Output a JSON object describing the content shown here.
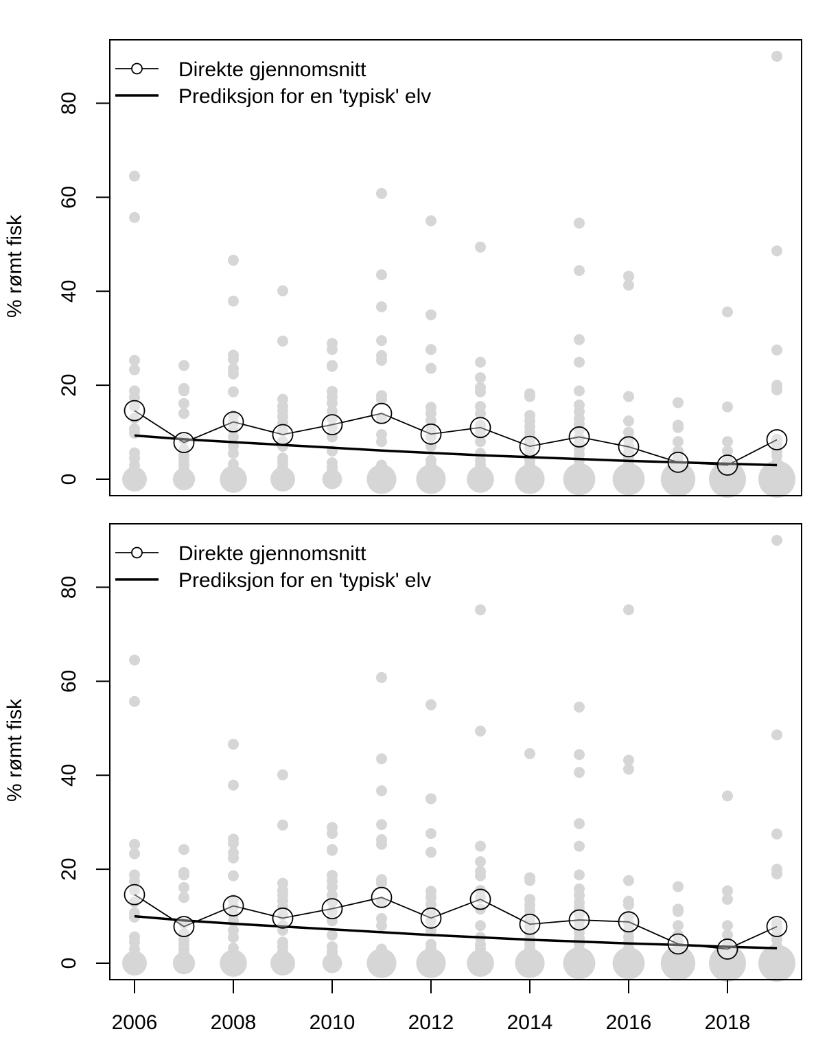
{
  "chart_data": [
    {
      "type": "scatter",
      "title": "",
      "xlabel": "",
      "ylabel": "% rømt fisk",
      "xlim": [
        2005.5,
        2019.5
      ],
      "ylim": [
        -3.5,
        93.5
      ],
      "yticks": [
        0,
        20,
        40,
        60,
        80
      ],
      "xticks": [
        2006,
        2008,
        2010,
        2012,
        2014,
        2016,
        2018
      ],
      "show_x_tick_labels": false,
      "grid": false,
      "legend_position": "top-left",
      "legend": [
        {
          "label": "Direkte gjennomsnitt",
          "style": "line-with-circle"
        },
        {
          "label": "Prediksjon for en 'typisk' elv",
          "style": "thick-line"
        }
      ],
      "colors": {
        "points": "#d6d6d6",
        "lines": "#000000"
      },
      "series": [
        {
          "name": "Direkte gjennomsnitt",
          "x": [
            2006,
            2007,
            2008,
            2009,
            2010,
            2011,
            2012,
            2013,
            2014,
            2015,
            2016,
            2017,
            2018,
            2019
          ],
          "y": [
            14.6,
            7.8,
            12.2,
            9.5,
            11.6,
            14.0,
            9.6,
            11.0,
            7.0,
            9.0,
            6.9,
            3.6,
            3.0,
            8.4
          ]
        },
        {
          "name": "Prediksjon for en 'typisk' elv",
          "x": [
            2006,
            2007,
            2008,
            2009,
            2010,
            2011,
            2012,
            2013,
            2014,
            2015,
            2016,
            2017,
            2018,
            2019
          ],
          "y": [
            9.3,
            8.5,
            7.9,
            7.3,
            6.7,
            6.1,
            5.6,
            5.1,
            4.7,
            4.3,
            3.9,
            3.6,
            3.3,
            3.0
          ]
        }
      ],
      "observations": [
        {
          "x": 2006,
          "y": [
            64.5,
            55.7,
            25.3,
            23.3,
            18.8,
            17.4,
            15.5,
            13.0,
            10.7,
            9.8,
            5.6,
            4.5,
            3.0,
            1.2
          ],
          "zero_group_size": 5
        },
        {
          "x": 2007,
          "y": [
            24.2,
            19.3,
            18.8,
            16.1,
            14.0,
            8.5,
            6.3,
            5.0,
            4.0,
            3.0,
            2.0,
            1.2
          ],
          "zero_group_size": 4
        },
        {
          "x": 2008,
          "y": [
            46.6,
            37.9,
            26.4,
            25.5,
            23.5,
            22.4,
            18.6,
            13.5,
            12.0,
            10.5,
            9.0,
            7.0,
            5.5,
            3.2,
            2.4
          ],
          "zero_group_size": 6
        },
        {
          "x": 2009,
          "y": [
            40.1,
            29.4,
            17.0,
            15.5,
            14.5,
            13.3,
            12.0,
            10.3,
            8.0,
            7.0,
            4.5,
            3.5,
            2.5,
            1.2
          ],
          "zero_group_size": 5
        },
        {
          "x": 2010,
          "y": [
            28.9,
            27.6,
            24.2,
            24.0,
            18.7,
            17.5,
            16.2,
            14.5,
            13.0,
            11.0,
            9.0,
            6.0,
            3.5,
            2.5,
            2.0
          ],
          "zero_group_size": 3
        },
        {
          "x": 2011,
          "y": [
            60.8,
            43.5,
            36.7,
            29.5,
            26.3,
            25.3,
            17.8,
            17.0,
            13.0,
            9.5,
            8.0,
            3.0,
            2.5
          ],
          "zero_group_size": 7
        },
        {
          "x": 2012,
          "y": [
            55.0,
            35.0,
            27.6,
            23.6,
            15.3,
            14.0,
            12.5,
            10.5,
            9.0,
            7.0,
            4.0,
            3.0,
            1.5,
            1.0
          ],
          "zero_group_size": 7
        },
        {
          "x": 2013,
          "y": [
            49.4,
            24.9,
            21.6,
            19.5,
            18.6,
            15.5,
            14.0,
            11.5,
            10.0,
            8.0,
            5.5,
            4.0,
            3.0,
            1.5
          ],
          "zero_group_size": 6
        },
        {
          "x": 2014,
          "y": [
            18.2,
            17.6,
            13.6,
            12.4,
            11.2,
            10.0,
            9.0,
            7.8,
            6.5,
            5.0,
            4.0,
            3.0,
            2.0,
            1.0
          ],
          "zero_group_size": 7
        },
        {
          "x": 2015,
          "y": [
            54.5,
            44.4,
            29.7,
            24.9,
            18.8,
            15.8,
            14.4,
            12.9,
            11.7,
            10.5,
            8.8,
            7.6,
            6.5,
            5.3,
            4.1,
            2.9,
            1.8
          ],
          "zero_group_size": 8
        },
        {
          "x": 2016,
          "y": [
            43.2,
            41.3,
            17.6,
            12.4,
            10.0,
            8.5,
            7.0,
            5.6,
            4.4,
            3.2,
            2.1,
            1.0
          ],
          "zero_group_size": 8
        },
        {
          "x": 2017,
          "y": [
            16.3,
            11.5,
            11.0,
            8.0,
            6.0,
            4.5,
            3.0,
            2.0,
            1.0
          ],
          "zero_group_size": 9
        },
        {
          "x": 2018,
          "y": [
            35.6,
            15.4,
            8.0,
            6.0,
            4.0,
            2.5,
            1.0
          ],
          "zero_group_size": 10
        },
        {
          "x": 2019,
          "y": [
            90.0,
            48.6,
            27.5,
            20.0,
            19.0,
            8.5,
            7.5,
            6.0,
            5.0,
            3.5,
            2.5,
            1.5
          ],
          "zero_group_size": 10
        }
      ]
    },
    {
      "type": "scatter",
      "title": "",
      "xlabel": "",
      "ylabel": "% rømt fisk",
      "xlim": [
        2005.5,
        2019.5
      ],
      "ylim": [
        -3.5,
        93.5
      ],
      "yticks": [
        0,
        20,
        40,
        60,
        80
      ],
      "xticks": [
        2006,
        2008,
        2010,
        2012,
        2014,
        2016,
        2018
      ],
      "x_tick_labels": [
        "2006",
        "2008",
        "2010",
        "2012",
        "2014",
        "2016",
        "2018"
      ],
      "show_x_tick_labels": true,
      "grid": false,
      "legend_position": "top-left",
      "legend": [
        {
          "label": "Direkte gjennomsnitt",
          "style": "line-with-circle"
        },
        {
          "label": "Prediksjon for en 'typisk' elv",
          "style": "thick-line"
        }
      ],
      "colors": {
        "points": "#d6d6d6",
        "lines": "#000000"
      },
      "series": [
        {
          "name": "Direkte gjennomsnitt",
          "x": [
            2006,
            2007,
            2008,
            2009,
            2010,
            2011,
            2012,
            2013,
            2014,
            2015,
            2016,
            2017,
            2018,
            2019
          ],
          "y": [
            14.6,
            7.8,
            12.2,
            9.6,
            11.6,
            14.0,
            9.6,
            13.6,
            8.3,
            9.2,
            8.8,
            4.1,
            3.0,
            7.8
          ]
        },
        {
          "name": "Prediksjon for en 'typisk' elv",
          "x": [
            2006,
            2007,
            2008,
            2009,
            2010,
            2011,
            2012,
            2013,
            2014,
            2015,
            2016,
            2017,
            2018,
            2019
          ],
          "y": [
            10.0,
            9.1,
            8.4,
            7.8,
            7.2,
            6.6,
            6.0,
            5.5,
            5.0,
            4.6,
            4.2,
            3.9,
            3.5,
            3.2
          ]
        }
      ],
      "observations": [
        {
          "x": 2006,
          "y": [
            64.5,
            55.7,
            25.3,
            23.3,
            18.8,
            17.4,
            15.5,
            13.0,
            10.7,
            9.8,
            5.6,
            4.5,
            3.0,
            1.2
          ],
          "zero_group_size": 5
        },
        {
          "x": 2007,
          "y": [
            24.2,
            19.3,
            18.8,
            16.1,
            14.0,
            8.5,
            6.3,
            5.0,
            4.0,
            3.0,
            2.0,
            1.2
          ],
          "zero_group_size": 4
        },
        {
          "x": 2008,
          "y": [
            46.6,
            37.9,
            26.4,
            25.5,
            23.5,
            22.4,
            18.6,
            13.5,
            12.0,
            10.5,
            9.0,
            7.0,
            5.5,
            3.2,
            2.4
          ],
          "zero_group_size": 6
        },
        {
          "x": 2009,
          "y": [
            40.1,
            29.4,
            17.0,
            15.5,
            14.5,
            13.3,
            12.0,
            10.3,
            8.0,
            7.0,
            4.5,
            3.5,
            2.5,
            1.2
          ],
          "zero_group_size": 5
        },
        {
          "x": 2010,
          "y": [
            28.9,
            27.6,
            24.2,
            24.0,
            18.7,
            17.5,
            16.2,
            14.5,
            13.0,
            11.0,
            9.0,
            6.0,
            3.5,
            2.5,
            2.0
          ],
          "zero_group_size": 3
        },
        {
          "x": 2011,
          "y": [
            60.8,
            43.5,
            36.7,
            29.5,
            26.3,
            25.3,
            17.8,
            17.0,
            13.0,
            9.5,
            8.0,
            3.0,
            2.5
          ],
          "zero_group_size": 7
        },
        {
          "x": 2012,
          "y": [
            55.0,
            35.0,
            27.6,
            23.6,
            15.3,
            14.0,
            12.5,
            10.5,
            9.0,
            7.0,
            4.0,
            3.0,
            1.5,
            1.0
          ],
          "zero_group_size": 7
        },
        {
          "x": 2013,
          "y": [
            75.2,
            49.4,
            24.9,
            21.6,
            19.5,
            18.6,
            15.5,
            14.0,
            11.5,
            8.0,
            5.5,
            4.0,
            3.0,
            1.5
          ],
          "zero_group_size": 6
        },
        {
          "x": 2014,
          "y": [
            44.6,
            18.2,
            17.6,
            13.6,
            12.4,
            11.2,
            10.0,
            9.0,
            7.8,
            6.5,
            5.0,
            4.0,
            3.0,
            2.0,
            1.0
          ],
          "zero_group_size": 7
        },
        {
          "x": 2015,
          "y": [
            54.5,
            44.4,
            40.6,
            29.7,
            24.9,
            18.8,
            15.8,
            14.4,
            12.9,
            11.7,
            10.5,
            8.8,
            7.6,
            6.5,
            5.3,
            4.1,
            2.9,
            1.8
          ],
          "zero_group_size": 8
        },
        {
          "x": 2016,
          "y": [
            75.2,
            43.2,
            41.3,
            17.6,
            13.2,
            12.4,
            10.0,
            8.5,
            7.0,
            5.6,
            4.4,
            3.2,
            2.1,
            1.0
          ],
          "zero_group_size": 8
        },
        {
          "x": 2017,
          "y": [
            16.3,
            11.5,
            11.0,
            8.0,
            6.0,
            4.5,
            3.0,
            2.0,
            1.0
          ],
          "zero_group_size": 9
        },
        {
          "x": 2018,
          "y": [
            35.6,
            15.4,
            13.6,
            8.0,
            6.0,
            4.0,
            2.5,
            1.0
          ],
          "zero_group_size": 10
        },
        {
          "x": 2019,
          "y": [
            90.0,
            48.6,
            27.5,
            20.0,
            19.0,
            8.5,
            7.5,
            6.0,
            5.0,
            3.5,
            2.5,
            1.5
          ],
          "zero_group_size": 10
        }
      ]
    }
  ]
}
